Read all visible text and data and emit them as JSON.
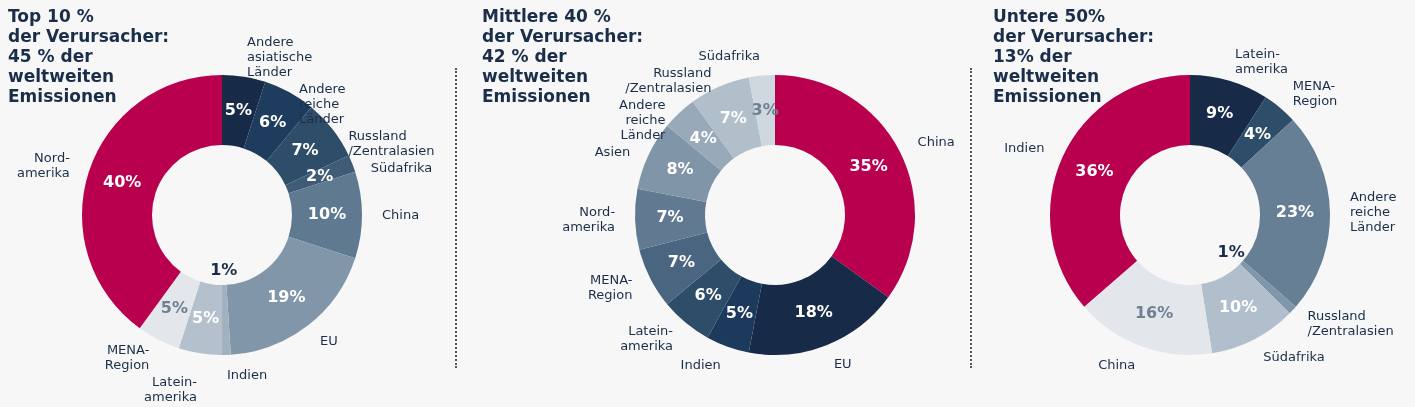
{
  "chart_data": [
    {
      "type": "donut",
      "title": "Top 10 %\nder Verursacher:\n45 % der\nweltweiten\nEmissionen",
      "categories": [
        "Andere\nasiatische\nLänder",
        "Andere\nreiche\nLänder",
        "Russland\n/Zentralasien",
        "Südafrika",
        "China",
        "EU",
        "Indien",
        "Latein-\namerika",
        "MENA-\nRegion",
        "Nord-\namerika"
      ],
      "values": [
        5,
        6,
        7,
        2,
        10,
        19,
        1,
        5,
        5,
        40
      ],
      "value_labels": [
        "5%",
        "6%",
        "7%",
        "2%",
        "10%",
        "19%",
        "1%",
        "5%",
        "5%",
        "40%"
      ],
      "colors": [
        "#172a47",
        "#1e3d5e",
        "#2e4d69",
        "#3f5b76",
        "#5f7a90",
        "#8196a9",
        "#a2b1c0",
        "#b4c1cd",
        "#e3e7ec",
        "#b8004f"
      ]
    },
    {
      "type": "donut",
      "title": "Mittlere 40 %\nder Verursacher:\n42 % der\nweltweiten\nEmissionen",
      "categories": [
        "China",
        "EU",
        "Indien",
        "Latein-\namerika",
        "MENA-\nRegion",
        "Nord-\namerika",
        "Asien",
        "Andere\nreiche\nLänder",
        "Russland\n/Zentralasien",
        "Südafrika"
      ],
      "values": [
        35,
        18,
        5,
        6,
        7,
        7,
        8,
        4,
        7,
        3
      ],
      "value_labels": [
        "35%",
        "18%",
        "5%",
        "6%",
        "7%",
        "7%",
        "8%",
        "4%",
        "7%",
        "3%"
      ],
      "colors": [
        "#b8004f",
        "#172a47",
        "#1c3b5c",
        "#2e4d68",
        "#4a6580",
        "#617a91",
        "#8095a8",
        "#98a9b9",
        "#b1bfcb",
        "#cfd7df"
      ]
    },
    {
      "type": "donut",
      "title": "Untere 50%\nder Verursacher:\n13% der\nweltweiten\nEmissionen",
      "categories": [
        "Latein-\namerika",
        "MENA-\nRegion",
        "Andere\nreiche\nLänder",
        "Russland\n/Zentralasien",
        "Südafrika",
        "China",
        "Indien"
      ],
      "values": [
        9,
        4,
        23,
        1,
        10,
        16,
        36
      ],
      "value_labels": [
        "9%",
        "4%",
        "23%",
        "1%",
        "10%",
        "16%",
        "36%"
      ],
      "colors": [
        "#172a47",
        "#2e4d69",
        "#667f94",
        "#8196a9",
        "#b1bfcc",
        "#e3e7ec",
        "#b8004f"
      ]
    }
  ]
}
